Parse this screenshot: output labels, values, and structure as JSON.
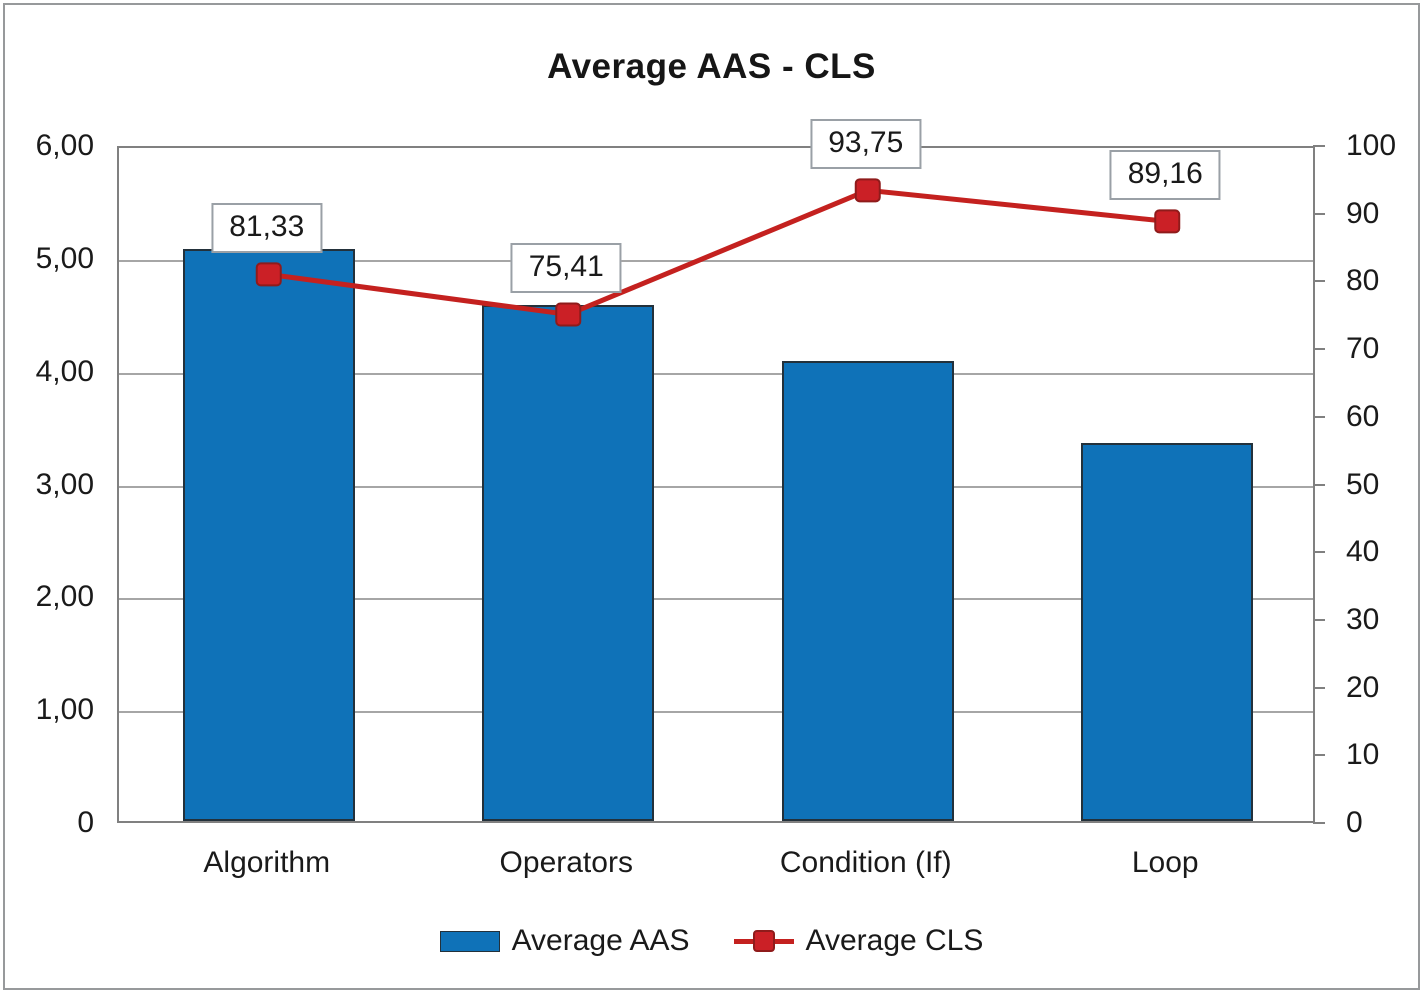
{
  "title": "Average AAS - CLS",
  "chart_data": {
    "type": "combo-bar-line",
    "title": "Average AAS - CLS",
    "categories": [
      "Algorithm",
      "Operators",
      "Condition (If)",
      "Loop"
    ],
    "series": [
      {
        "name": "Average AAS",
        "type": "bar",
        "axis": "left",
        "values": [
          5.07,
          4.57,
          4.08,
          3.35
        ]
      },
      {
        "name": "Average CLS",
        "type": "line",
        "axis": "right",
        "values": [
          81.33,
          75.41,
          93.75,
          89.16
        ],
        "point_labels": [
          "81,33",
          "75,41",
          "93,75",
          "89,16"
        ]
      }
    ],
    "left_axis": {
      "min": 0,
      "max": 6,
      "step": 1,
      "tick_labels": [
        "0",
        "1,00",
        "2,00",
        "3,00",
        "4,00",
        "5,00",
        "6,00"
      ]
    },
    "right_axis": {
      "min": 0,
      "max": 100,
      "step": 10,
      "tick_labels": [
        "0",
        "10",
        "20",
        "30",
        "40",
        "50",
        "60",
        "70",
        "80",
        "90",
        "100"
      ]
    },
    "grid": true,
    "legend_position": "bottom",
    "legend": [
      {
        "label": "Average AAS",
        "marker": "bar-swatch"
      },
      {
        "label": "Average CLS",
        "marker": "line-square"
      }
    ]
  },
  "colors": {
    "bar_fill": "#0F72B8",
    "bar_border": "#23313B",
    "line": "#C4211F",
    "marker_fill": "#CB2026",
    "marker_border": "#8F1B1B",
    "gridline": "#A6A6A6",
    "axis_border": "#808080",
    "label_box_border": "#9AA0A6",
    "text": "#1A1A1A"
  }
}
